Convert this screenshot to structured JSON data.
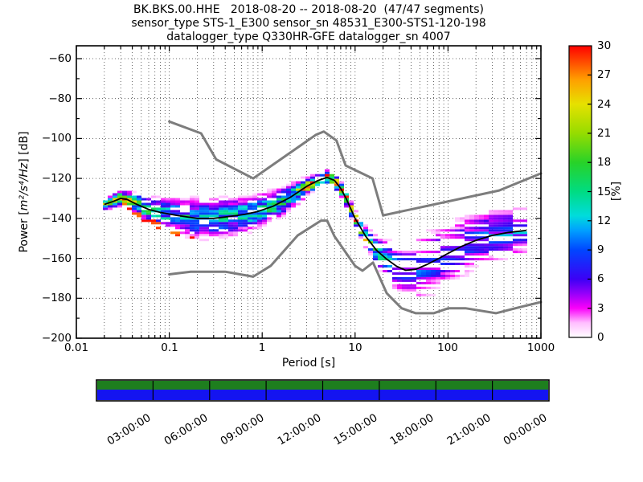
{
  "title": {
    "line1": "BK.BKS.00.HHE   2018-08-20 -- 2018-08-20  (47/47 segments)",
    "line2": "sensor_type STS-1_E300 sensor_sn 48531_E300-STS1-120-198",
    "line3": "datalogger_type Q330HR-GFE datalogger_sn 4007"
  },
  "labels": {
    "xlabel": "Period [s]",
    "ylabel_prefix": "Power [",
    "ylabel_math": "m²/s⁴/Hz",
    "ylabel_suffix": "] [dB]",
    "colorbar_label": "[%]"
  },
  "chart_data": {
    "type": "heatmap",
    "title": "BK.BKS.00.HHE 2018-08-20 -- 2018-08-20 (47/47 segments)",
    "xlabel": "Period [s]",
    "ylabel": "Power [m2/s4/Hz] [dB]",
    "xscale": "log",
    "xlim": [
      0.01,
      1000
    ],
    "ylim": [
      -200,
      -53.5
    ],
    "grid": "dotted, major and minor x, major y",
    "x_ticks": [
      0.01,
      0.1,
      1,
      10,
      100,
      1000
    ],
    "x_tick_labels": [
      "0.01",
      "0.1",
      "1",
      "10",
      "100",
      "1000"
    ],
    "y_ticks": [
      -60,
      -80,
      -100,
      -120,
      -140,
      -160,
      -180,
      -200
    ],
    "y_tick_labels": [
      "−60",
      "−80",
      "−100",
      "−120",
      "−140",
      "−160",
      "−180",
      "−200"
    ],
    "colorbar": {
      "label": "[%]",
      "min": 0,
      "max": 30,
      "tick_values": [
        0,
        3,
        6,
        9,
        12,
        15,
        18,
        21,
        24,
        27,
        30
      ],
      "tick_labels": [
        "0",
        "3",
        "6",
        "9",
        "12",
        "15",
        "18",
        "21",
        "24",
        "27",
        "30"
      ],
      "stops": [
        [
          0,
          "#ffffff"
        ],
        [
          1.5,
          "#ffbeff"
        ],
        [
          3,
          "#fa00fa"
        ],
        [
          4.5,
          "#9600fa"
        ],
        [
          6,
          "#3c00f5"
        ],
        [
          9,
          "#0046ff"
        ],
        [
          11,
          "#00a0ff"
        ],
        [
          12.5,
          "#00dcdc"
        ],
        [
          15,
          "#00dc82"
        ],
        [
          18,
          "#28d228"
        ],
        [
          21,
          "#96dc00"
        ],
        [
          24,
          "#e6e100"
        ],
        [
          26.5,
          "#ffa000"
        ],
        [
          30,
          "#ff0000"
        ]
      ]
    },
    "noise_model_high": [
      [
        0.1,
        -91.5
      ],
      [
        0.22,
        -97.4
      ],
      [
        0.32,
        -110.5
      ],
      [
        0.8,
        -120.0
      ],
      [
        3.8,
        -98.1
      ],
      [
        4.6,
        -96.5
      ],
      [
        6.3,
        -101.0
      ],
      [
        7.9,
        -113.5
      ],
      [
        15.4,
        -120.0
      ],
      [
        20.0,
        -138.5
      ],
      [
        354.8,
        -126.0
      ],
      [
        1000,
        -117.5
      ]
    ],
    "noise_model_low": [
      [
        0.1,
        -168.0
      ],
      [
        0.17,
        -166.7
      ],
      [
        0.4,
        -166.7
      ],
      [
        0.8,
        -169.2
      ],
      [
        1.24,
        -163.7
      ],
      [
        2.4,
        -148.6
      ],
      [
        4.3,
        -141.1
      ],
      [
        5.0,
        -141.1
      ],
      [
        6.0,
        -149.0
      ],
      [
        10.0,
        -163.8
      ],
      [
        12.0,
        -166.2
      ],
      [
        15.6,
        -162.1
      ],
      [
        21.9,
        -177.5
      ],
      [
        31.6,
        -185.0
      ],
      [
        45.0,
        -187.5
      ],
      [
        70.0,
        -187.5
      ],
      [
        101.0,
        -185.0
      ],
      [
        154.0,
        -185.0
      ],
      [
        328.0,
        -187.5
      ],
      [
        600.0,
        -184.4
      ],
      [
        1000,
        -181.9
      ]
    ],
    "mode_line": [
      [
        0.02,
        -133
      ],
      [
        0.025,
        -131.5
      ],
      [
        0.03,
        -130
      ],
      [
        0.035,
        -130.5
      ],
      [
        0.045,
        -133
      ],
      [
        0.06,
        -135.5
      ],
      [
        0.08,
        -137
      ],
      [
        0.12,
        -138.5
      ],
      [
        0.2,
        -140
      ],
      [
        0.3,
        -140
      ],
      [
        0.45,
        -139
      ],
      [
        0.65,
        -138
      ],
      [
        0.9,
        -136.5
      ],
      [
        1.3,
        -134
      ],
      [
        2,
        -129.5
      ],
      [
        3,
        -124
      ],
      [
        4,
        -121
      ],
      [
        5,
        -119.5
      ],
      [
        6,
        -121
      ],
      [
        7,
        -125
      ],
      [
        8,
        -130
      ],
      [
        10,
        -140
      ],
      [
        13,
        -149
      ],
      [
        17,
        -156
      ],
      [
        22,
        -160.5
      ],
      [
        28,
        -164
      ],
      [
        35,
        -166
      ],
      [
        45,
        -165.5
      ],
      [
        60,
        -163
      ],
      [
        80,
        -160
      ],
      [
        100,
        -157.5
      ],
      [
        140,
        -154
      ],
      [
        200,
        -151
      ],
      [
        300,
        -148.5
      ],
      [
        450,
        -147
      ],
      [
        700,
        -146
      ]
    ],
    "psd_histogram": {
      "period_range": [
        0.019,
        700
      ],
      "db_bin": 1.2,
      "sigma_db": [
        [
          0.02,
          1.2
        ],
        [
          0.03,
          1.8
        ],
        [
          0.05,
          3
        ],
        [
          0.08,
          3.8
        ],
        [
          0.15,
          4.5
        ],
        [
          0.3,
          4.8
        ],
        [
          0.6,
          4.5
        ],
        [
          1,
          4
        ],
        [
          2,
          3.2
        ],
        [
          3,
          2.2
        ],
        [
          4.5,
          1.6
        ],
        [
          6,
          1.6
        ],
        [
          8,
          1.7
        ],
        [
          10,
          2
        ],
        [
          15,
          2.6
        ],
        [
          20,
          4.5
        ],
        [
          30,
          7
        ],
        [
          50,
          8
        ],
        [
          80,
          8
        ],
        [
          150,
          7.5
        ],
        [
          300,
          7
        ],
        [
          700,
          5.5
        ]
      ],
      "peak_percent": [
        [
          0.02,
          28
        ],
        [
          0.03,
          22
        ],
        [
          0.05,
          15
        ],
        [
          0.1,
          12
        ],
        [
          0.3,
          12
        ],
        [
          1,
          13
        ],
        [
          2,
          15
        ],
        [
          3,
          22
        ],
        [
          4.5,
          30
        ],
        [
          8,
          30
        ],
        [
          10,
          28
        ],
        [
          15,
          20
        ],
        [
          20,
          12
        ],
        [
          30,
          8
        ],
        [
          50,
          7
        ],
        [
          100,
          7
        ],
        [
          300,
          8
        ],
        [
          700,
          9
        ]
      ],
      "dropout": [
        [
          0.02,
          0.1
        ],
        [
          0.1,
          0.12
        ],
        [
          1,
          0.12
        ],
        [
          5,
          0.08
        ],
        [
          10,
          0.1
        ],
        [
          15,
          0.25
        ],
        [
          25,
          0.42
        ],
        [
          50,
          0.48
        ],
        [
          100,
          0.45
        ],
        [
          300,
          0.4
        ],
        [
          700,
          0.35
        ]
      ],
      "red_edge_period_range": [
        0.028,
        0.18
      ]
    },
    "timeline": {
      "span_hours": 24,
      "tick_step_hours": 3,
      "labels": [
        "03:00:00",
        "06:00:00",
        "09:00:00",
        "12:00:00",
        "15:00:00",
        "18:00:00",
        "21:00:00",
        "00:00:00"
      ],
      "rows": [
        {
          "name": "data-coverage",
          "color": "#1e7e1e"
        },
        {
          "name": "psd-coverage",
          "color": "#1414f0"
        }
      ]
    }
  }
}
